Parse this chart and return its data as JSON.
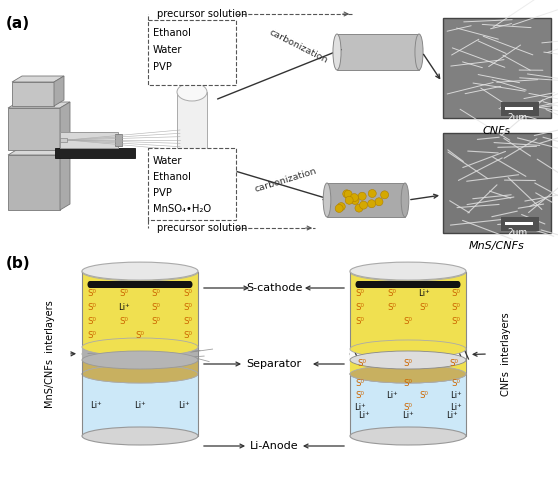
{
  "fig_width": 5.58,
  "fig_height": 5.0,
  "dpi": 100,
  "bg_color": "#ffffff",
  "panel_a_label": "(a)",
  "panel_b_label": "(b)",
  "top_box_lines": [
    "Ethanol",
    "Water",
    "PVP"
  ],
  "bottom_box_lines": [
    "Water",
    "Ethanol",
    "PVP",
    "MnSO₄•H₂O"
  ],
  "top_precursor": "precursor solution",
  "bottom_precursor": "precursor solution",
  "carbonization_label": "carbonization",
  "cnfs_label": "CNFs",
  "mnscnfs_label": "MnS/CNFs",
  "scathode_label": "S-cathode",
  "separator_label": "Separator",
  "lianode_label": "Li-Anode",
  "left_interlayer_label": "MnS/CNFs  interlayers",
  "right_interlayer_label": "CNFs  interlayers",
  "yellow_color": "#f0e050",
  "light_blue_color": "#d0e8f8",
  "separator_color": "#c8b870",
  "gold_dot_color": "#d4a800",
  "gray_cylinder": "#c0c0c0",
  "gray_cylinder_dark": "#aaaaaa"
}
